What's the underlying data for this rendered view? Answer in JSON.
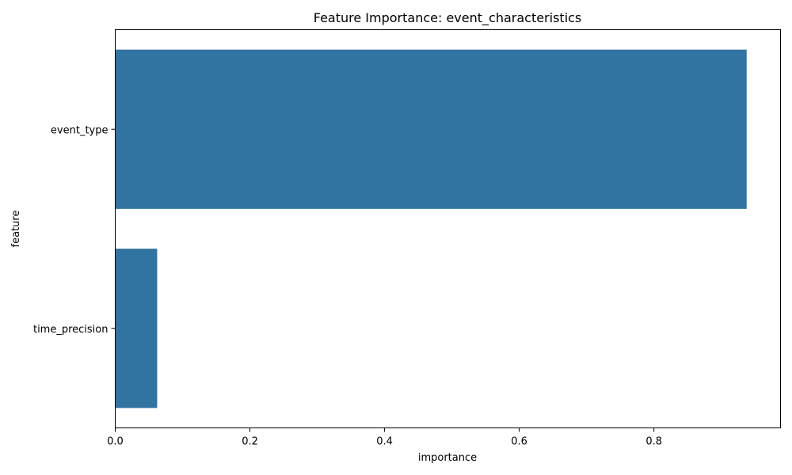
{
  "chart_data": {
    "type": "bar",
    "orientation": "horizontal",
    "title": "Feature Importance: event_characteristics",
    "xlabel": "importance",
    "ylabel": "feature",
    "categories": [
      "event_type",
      "time_precision"
    ],
    "values": [
      0.9377,
      0.0623
    ],
    "xlim": [
      0,
      0.988
    ],
    "xticks": [
      0.0,
      0.2,
      0.4,
      0.6,
      0.8
    ],
    "xtick_labels": [
      "0.0",
      "0.2",
      "0.4",
      "0.6",
      "0.8"
    ],
    "bar_color": "#3274a1",
    "grid": false,
    "legend": "none"
  }
}
